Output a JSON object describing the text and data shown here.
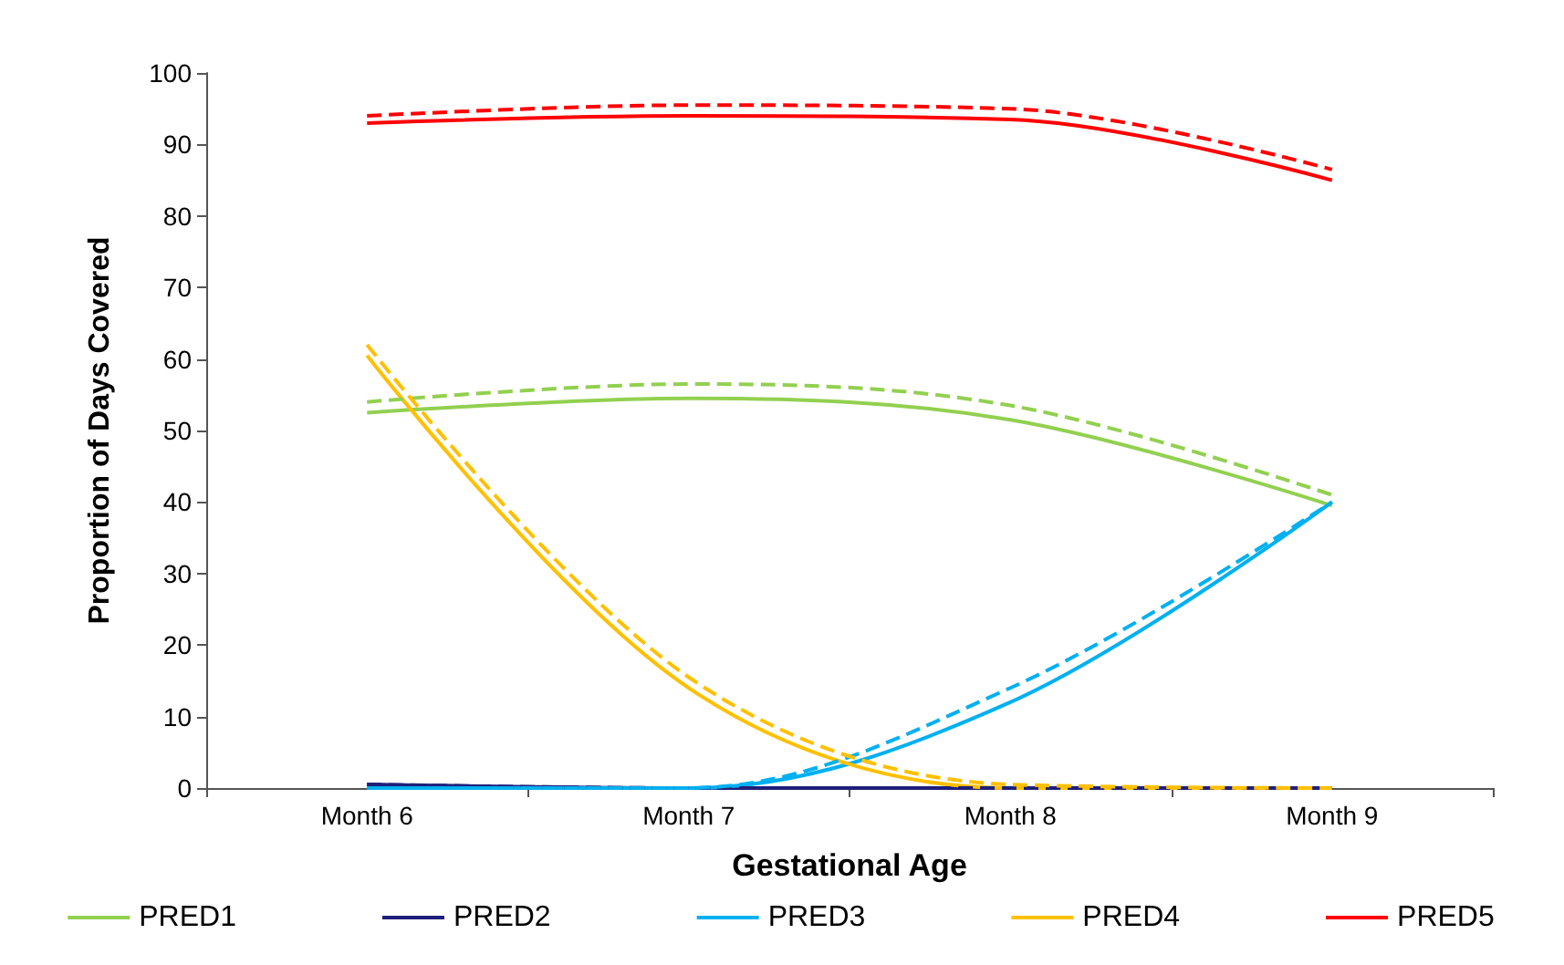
{
  "chart_data": {
    "type": "line",
    "xlabel": "Gestational Age",
    "ylabel": "Proportion of Days Covered",
    "categories": [
      "Month 6",
      "Month 7",
      "Month 8",
      "Month 9"
    ],
    "ylim": [
      0,
      100
    ],
    "yticks": [
      0,
      10,
      20,
      30,
      40,
      50,
      60,
      70,
      80,
      90,
      100
    ],
    "grid": false,
    "legend": "bottom",
    "marker": "none",
    "series": [
      {
        "name": "PRED1",
        "color": "#92d050",
        "values": [
          52.5,
          54.5,
          51.5,
          39.5
        ]
      },
      {
        "name": "PRED2",
        "color": "#1f1f7a",
        "values": [
          0.5,
          0,
          0,
          0
        ]
      },
      {
        "name": "PRED3",
        "color": "#00b0f0",
        "values": [
          0,
          0,
          12,
          40
        ]
      },
      {
        "name": "PRED4",
        "color": "#ffc000",
        "values": [
          60.5,
          14,
          0,
          0
        ]
      },
      {
        "name": "PRED5",
        "color": "#ff0000",
        "values": [
          93,
          94,
          93.5,
          85
        ]
      },
      {
        "color": "#92d050",
        "line_style": "dashed",
        "values": [
          54,
          56.5,
          53.5,
          41
        ]
      },
      {
        "color": "#1f1f7a",
        "line_style": "dashed",
        "values": [
          0.5,
          0,
          0,
          0
        ]
      },
      {
        "color": "#00b0f0",
        "line_style": "dashed",
        "values": [
          0,
          0,
          14,
          40
        ]
      },
      {
        "color": "#ffc000",
        "line_style": "dashed",
        "values": [
          62,
          15.5,
          0.5,
          0
        ]
      },
      {
        "color": "#ff0000",
        "line_style": "dashed",
        "values": [
          94,
          95.5,
          95,
          86.5
        ]
      }
    ]
  }
}
